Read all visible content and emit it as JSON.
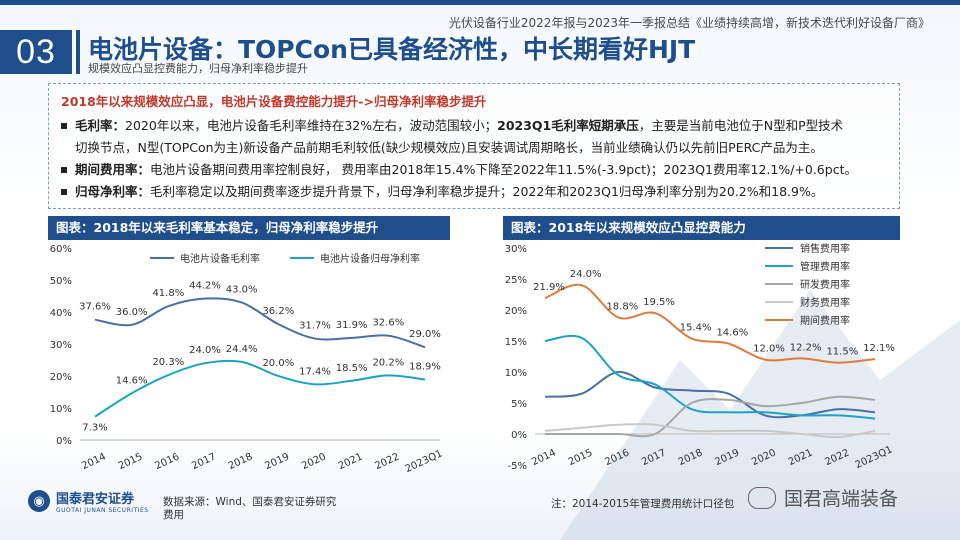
{
  "header": {
    "report_line": "光伏设备行业2022年报与2023年一季报总结《业绩持续高增，新技术迭代利好设备厂商》",
    "section_number": "03",
    "title": "电池片设备：TOPCon已具备经济性，中长期看好HJT",
    "subtitle": "规模效应凸显控费能力，归母净利率稳步提升"
  },
  "summary": {
    "headline": "2018年以来规模效应凸显，电池片设备费控能力提升->归母净利率稳步提升",
    "bullets": [
      {
        "label": "毛利率：",
        "text1": "2020年以来，电池片设备毛利率维持在32%左右，波动范围较小；",
        "bold2": "2023Q1毛利率短期承压",
        "text2": "，主要是当前电池位于N型和P型技术",
        "line2": "切换节点，N型(TOPCon为主)新设备产品前期毛利较低(缺少规模效应)且安装调试周期略长，当前业绩确认仍以先前旧PERC产品为主。"
      },
      {
        "label": "期间费用率：",
        "text1": "电池片设备期间费用率控制良好，    费用率由2018年15.4%下降至2022年11.5%(-3.9pct)；2023Q1费用率12.1%/+0.6pct。"
      },
      {
        "label": "归母净利率：",
        "text1": "毛利率稳定以及期间费率逐步提升背景下，归母净利率稳步提升；2022年和2023Q1归母净利率分别为20.2%和18.9%。"
      }
    ]
  },
  "footer": {
    "logo_cn": "国泰君安证券",
    "logo_en": "GUOTAI JUNAN SECURITIES",
    "source": "数据来源：Wind、国泰君安证券研究",
    "source_line2": "费用",
    "note": "注：2014-2015年管理费用统计口径包",
    "watermark": "国君高端装备"
  },
  "colors": {
    "primary": "#1f4e8c",
    "accent_red": "#c0392b",
    "line_dark": "#4a6fa5",
    "line_cyan": "#1aa3c8",
    "line_orange": "#e07b39",
    "line_gray": "#a6a6a6",
    "line_light": "#c8c8c8"
  },
  "chart_data": [
    {
      "type": "line",
      "title": "图表：2018年以来毛利率基本稳定，归母净利率稳步提升",
      "categories": [
        "2014",
        "2015",
        "2016",
        "2017",
        "2018",
        "2019",
        "2020",
        "2021",
        "2022",
        "2023Q1"
      ],
      "ylim": [
        0,
        60
      ],
      "yticks": [
        "0%",
        "10%",
        "20%",
        "30%",
        "40%",
        "50%",
        "60%"
      ],
      "series": [
        {
          "name": "电池片设备毛利率",
          "values": [
            37.6,
            36.0,
            41.8,
            44.2,
            43.0,
            36.2,
            31.7,
            31.9,
            32.6,
            29.0
          ],
          "labels": [
            "37.6%",
            "36.0%",
            "41.8%",
            "44.2%",
            "43.0%",
            "36.2%",
            "31.7%",
            "31.9%",
            "32.6%",
            "29.0%"
          ]
        },
        {
          "name": "电池片设备归母净利率",
          "values": [
            7.3,
            14.6,
            20.3,
            24.0,
            24.4,
            20.0,
            17.4,
            18.5,
            20.2,
            18.9
          ],
          "labels": [
            "7.3%",
            "14.6%",
            "20.3%",
            "24.0%",
            "24.4%",
            "20.0%",
            "17.4%",
            "18.5%",
            "20.2%",
            "18.9%"
          ]
        }
      ]
    },
    {
      "type": "line",
      "title": "图表：2018年以来规模效应凸显控费能力",
      "categories": [
        "2014",
        "2015",
        "2016",
        "2017",
        "2018",
        "2019",
        "2020",
        "2021",
        "2022",
        "2023Q1"
      ],
      "ylim": [
        -5,
        30
      ],
      "yticks": [
        "-5%",
        "0%",
        "5%",
        "10%",
        "15%",
        "20%",
        "25%",
        "30%"
      ],
      "series": [
        {
          "name": "销售费用率",
          "values": [
            6.0,
            6.5,
            10.0,
            7.5,
            7.0,
            6.5,
            3.0,
            3.0,
            4.0,
            3.5
          ]
        },
        {
          "name": "管理费用率",
          "values": [
            15.0,
            15.5,
            9.5,
            8.0,
            4.0,
            3.5,
            3.5,
            3.0,
            3.0,
            2.5
          ]
        },
        {
          "name": "研发费用率",
          "values": [
            0,
            0,
            0,
            0,
            5.0,
            5.5,
            4.5,
            5.0,
            6.0,
            5.5
          ]
        },
        {
          "name": "财务费用率",
          "values": [
            0.5,
            1.0,
            1.5,
            1.5,
            0.5,
            0.5,
            0.5,
            0.0,
            -0.5,
            0.5
          ]
        },
        {
          "name": "期间费用率",
          "values": [
            21.9,
            24.0,
            18.8,
            19.5,
            15.4,
            14.6,
            12.0,
            12.2,
            11.5,
            12.1
          ],
          "labels": [
            "21.9%",
            "24.0%",
            "18.8%",
            "19.5%",
            "15.4%",
            "14.6%",
            "12.0%",
            "12.2%",
            "11.5%",
            "12.1%"
          ]
        }
      ]
    }
  ]
}
